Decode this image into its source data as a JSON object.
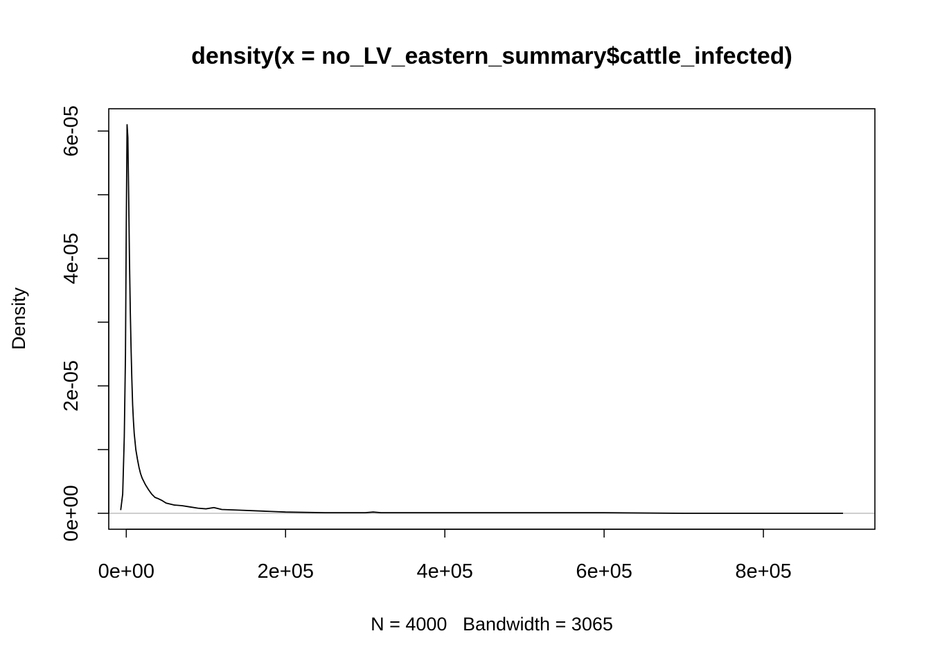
{
  "chart_data": {
    "type": "line",
    "title": "density(x = no_LV_eastern_summary$cattle_infected)",
    "xlabel": "N = 4000   Bandwidth = 3065",
    "ylabel": "Density",
    "xlim": [
      -22000,
      940000
    ],
    "ylim": [
      -2.5e-06,
      6.35e-05
    ],
    "x_ticks": [
      0,
      200000,
      400000,
      600000,
      800000
    ],
    "x_tick_labels": [
      "0e+00",
      "2e+05",
      "4e+05",
      "6e+05",
      "8e+05"
    ],
    "y_ticks": [
      0,
      1e-05,
      2e-05,
      3e-05,
      4e-05,
      5e-05,
      6e-05
    ],
    "y_tick_labels": [
      "0e+00",
      "",
      "2e-05",
      "",
      "4e-05",
      "",
      "6e-05"
    ],
    "grid": false,
    "series": [
      {
        "color": "#000000",
        "x": [
          -7000,
          -4500,
          -2500,
          -1000,
          0,
          1000,
          2000,
          3000,
          4000,
          5000,
          6000,
          7000,
          8000,
          9000,
          10000,
          12000,
          14000,
          16000,
          18000,
          20000,
          24000,
          28000,
          32000,
          36000,
          40000,
          45000,
          50000,
          60000,
          70000,
          80000,
          90000,
          100000,
          110000,
          120000,
          140000,
          160000,
          180000,
          200000,
          250000,
          300000,
          310000,
          320000,
          350000,
          400000,
          500000,
          600000,
          700000,
          800000,
          900000
        ],
        "y": [
          5e-07,
          3e-06,
          1.2e-05,
          2.5e-05,
          4.5e-05,
          6.1e-05,
          5.9e-05,
          5e-05,
          4e-05,
          3.2e-05,
          2.6e-05,
          2.1e-05,
          1.7e-05,
          1.45e-05,
          1.25e-05,
          1e-05,
          8.5e-06,
          7.2e-06,
          6.2e-06,
          5.5e-06,
          4.5e-06,
          3.7e-06,
          3e-06,
          2.5e-06,
          2.3e-06,
          2e-06,
          1.6e-06,
          1.3e-06,
          1.2e-06,
          1e-06,
          8e-07,
          7e-07,
          9e-07,
          6e-07,
          5e-07,
          4e-07,
          3e-07,
          2e-07,
          1e-07,
          1e-07,
          2e-07,
          1e-07,
          1e-07,
          1e-07,
          1e-07,
          1e-07,
          0,
          0,
          0
        ]
      }
    ]
  }
}
